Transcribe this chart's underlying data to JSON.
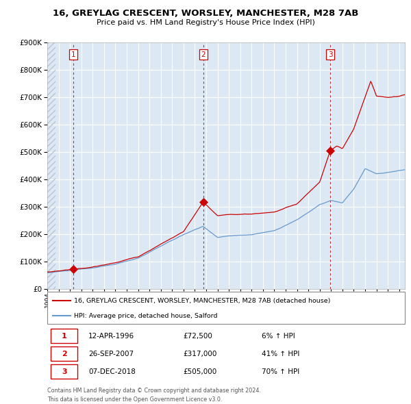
{
  "title": "16, GREYLAG CRESCENT, WORSLEY, MANCHESTER, M28 7AB",
  "subtitle": "Price paid vs. HM Land Registry's House Price Index (HPI)",
  "legend_line1": "16, GREYLAG CRESCENT, WORSLEY, MANCHESTER, M28 7AB (detached house)",
  "legend_line2": "HPI: Average price, detached house, Salford",
  "purchases": [
    {
      "label": "1",
      "date": "12-APR-1996",
      "year": 1996.28,
      "price": 72500,
      "pct": "6% ↑ HPI"
    },
    {
      "label": "2",
      "date": "26-SEP-2007",
      "year": 2007.74,
      "price": 317000,
      "pct": "41% ↑ HPI"
    },
    {
      "label": "3",
      "date": "07-DEC-2018",
      "year": 2018.93,
      "price": 505000,
      "pct": "70% ↑ HPI"
    }
  ],
  "price_str": [
    "£72,500",
    "£317,000",
    "£505,000"
  ],
  "footnote1": "Contains HM Land Registry data © Crown copyright and database right 2024.",
  "footnote2": "This data is licensed under the Open Government Licence v3.0.",
  "red_color": "#cc0000",
  "blue_color": "#6699cc",
  "background_color": "#dce9f5",
  "grid_color": "#ffffff",
  "hatch_color": "#b8c4d0",
  "xmin": 1994.0,
  "xmax": 2025.5,
  "ymin": 0,
  "ymax": 900000
}
